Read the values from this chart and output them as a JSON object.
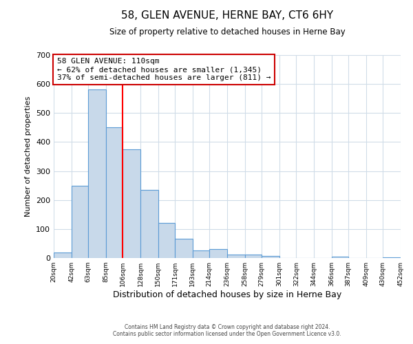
{
  "title": "58, GLEN AVENUE, HERNE BAY, CT6 6HY",
  "subtitle": "Size of property relative to detached houses in Herne Bay",
  "xlabel": "Distribution of detached houses by size in Herne Bay",
  "ylabel": "Number of detached properties",
  "bin_edges": [
    20,
    42,
    63,
    85,
    106,
    128,
    150,
    171,
    193,
    214,
    236,
    258,
    279,
    301,
    322,
    344,
    366,
    387,
    409,
    430,
    452
  ],
  "bar_heights": [
    18,
    248,
    582,
    450,
    375,
    235,
    120,
    67,
    25,
    30,
    12,
    12,
    8,
    0,
    0,
    0,
    5,
    0,
    0,
    2
  ],
  "bar_color": "#c8d9ea",
  "bar_edge_color": "#5b9bd5",
  "red_line_x": 106,
  "annotation_title": "58 GLEN AVENUE: 110sqm",
  "annotation_line1": "← 62% of detached houses are smaller (1,345)",
  "annotation_line2": "37% of semi-detached houses are larger (811) →",
  "annotation_box_color": "#ffffff",
  "annotation_box_edge_color": "#cc0000",
  "ylim": [
    0,
    700
  ],
  "yticks": [
    0,
    100,
    200,
    300,
    400,
    500,
    600,
    700
  ],
  "tick_labels": [
    "20sqm",
    "42sqm",
    "63sqm",
    "85sqm",
    "106sqm",
    "128sqm",
    "150sqm",
    "171sqm",
    "193sqm",
    "214sqm",
    "236sqm",
    "258sqm",
    "279sqm",
    "301sqm",
    "322sqm",
    "344sqm",
    "366sqm",
    "387sqm",
    "409sqm",
    "430sqm",
    "452sqm"
  ],
  "footer1": "Contains HM Land Registry data © Crown copyright and database right 2024.",
  "footer2": "Contains public sector information licensed under the Open Government Licence v3.0.",
  "background_color": "#ffffff",
  "grid_color": "#d0dce8"
}
